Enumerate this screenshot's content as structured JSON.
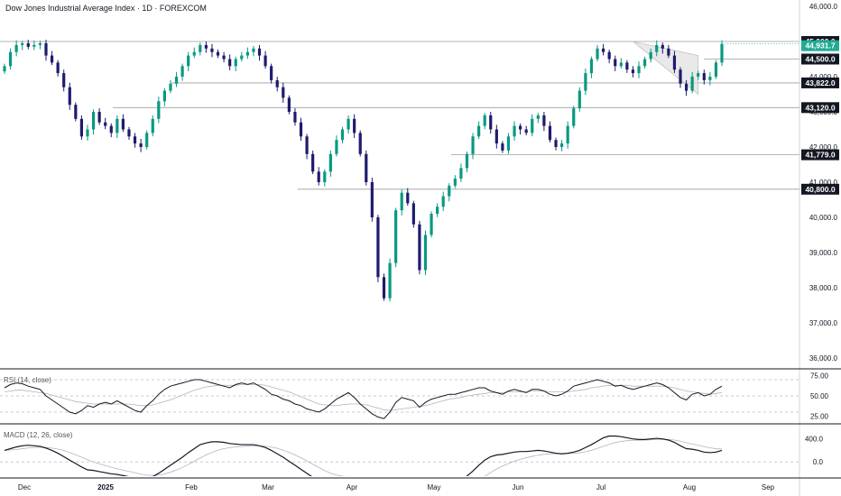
{
  "header": {
    "title": "Dow Jones Industrial Average Index · 1D · FOREXCOM"
  },
  "rsi_label": "RSI (14, close)",
  "macd_label": "MACD (12, 26, close)",
  "colors": {
    "up": "#089981",
    "down": "#1e1b6e",
    "level_line": "#9e9e9e",
    "last_price": "#22ab94"
  },
  "chart_data": [
    {
      "type": "candlestick",
      "title": "Dow Jones Industrial Average Index · 1D · FOREXCOM",
      "ylim": [
        36000,
        46000
      ],
      "y_ticks": [
        "46,000.0",
        "45,000.0",
        "44,000.0",
        "43,000.0",
        "42,000.0",
        "41,000.0",
        "40,000.0",
        "39,000.0",
        "38,000.0",
        "37,000.0",
        "36,000.0"
      ],
      "y_tick_values": [
        46000,
        45000,
        44000,
        43000,
        42000,
        41000,
        40000,
        39000,
        38000,
        37000,
        36000
      ],
      "x_ticks": [
        "Dec",
        "2025",
        "Feb",
        "Mar",
        "Apr",
        "May",
        "Jun",
        "Jul",
        "Aug",
        "Sep"
      ],
      "levels": [
        {
          "value": 45000,
          "label": "45,000.0"
        },
        {
          "value": 44500,
          "label": "44,500.0"
        },
        {
          "value": 43822,
          "label": "43,822.0"
        },
        {
          "value": 43120,
          "label": "43,120.0"
        },
        {
          "value": 41779,
          "label": "41,779.0"
        },
        {
          "value": 40800,
          "label": "40,800.0"
        }
      ],
      "last_price": {
        "value": 44931.7,
        "label": "44,931.7"
      },
      "closes": [
        44300,
        44700,
        44900,
        44950,
        44850,
        44900,
        44950,
        44600,
        44400,
        44100,
        43700,
        43200,
        42800,
        42300,
        42500,
        43000,
        42700,
        42600,
        42400,
        42800,
        42500,
        42300,
        42100,
        42000,
        42400,
        42800,
        43300,
        43600,
        43800,
        44000,
        44300,
        44600,
        44700,
        44900,
        44800,
        44700,
        44600,
        44500,
        44300,
        44500,
        44600,
        44700,
        44800,
        44600,
        44300,
        43900,
        43700,
        43400,
        43000,
        42700,
        42300,
        41800,
        41300,
        41000,
        41300,
        41800,
        42200,
        42500,
        42800,
        42400,
        41800,
        41000,
        40000,
        38300,
        37700,
        38700,
        40200,
        40700,
        40400,
        39800,
        38500,
        39500,
        40100,
        40300,
        40600,
        40900,
        41100,
        41400,
        41800,
        42300,
        42600,
        42900,
        42500,
        42100,
        41900,
        42300,
        42600,
        42500,
        42400,
        42800,
        42900,
        42600,
        42200,
        42000,
        42100,
        42600,
        43100,
        43600,
        44100,
        44500,
        44800,
        44700,
        44500,
        44300,
        44400,
        44200,
        44100,
        44300,
        44500,
        44700,
        44900,
        44800,
        44600,
        44200,
        43800,
        43600,
        44000,
        44100,
        43900,
        44000,
        44400,
        44931.7
      ]
    },
    {
      "type": "line",
      "title": "RSI (14, close)",
      "ylim": [
        20,
        80
      ],
      "y_ticks": [
        "75.00",
        "50.00",
        "25.00"
      ],
      "y_tick_values": [
        75,
        50,
        25
      ],
      "rsi": [
        60,
        64,
        66,
        65,
        62,
        60,
        58,
        50,
        45,
        40,
        35,
        30,
        28,
        32,
        38,
        36,
        40,
        42,
        40,
        44,
        40,
        36,
        32,
        30,
        38,
        44,
        52,
        58,
        62,
        64,
        66,
        68,
        70,
        70,
        68,
        66,
        64,
        62,
        60,
        64,
        66,
        64,
        66,
        62,
        58,
        52,
        50,
        46,
        44,
        40,
        38,
        34,
        32,
        30,
        34,
        40,
        46,
        50,
        54,
        48,
        40,
        34,
        28,
        24,
        22,
        30,
        42,
        48,
        46,
        44,
        36,
        42,
        46,
        48,
        50,
        52,
        52,
        54,
        56,
        58,
        60,
        60,
        56,
        54,
        52,
        56,
        58,
        56,
        54,
        58,
        58,
        56,
        52,
        50,
        52,
        56,
        62,
        64,
        66,
        68,
        70,
        68,
        66,
        62,
        63,
        60,
        58,
        60,
        62,
        64,
        66,
        64,
        60,
        54,
        48,
        45,
        52,
        54,
        50,
        52,
        58,
        62
      ],
      "rsi_ma": [
        55,
        56,
        57,
        57,
        56,
        55,
        54,
        53,
        51,
        49,
        47,
        45,
        43,
        42,
        41,
        40,
        40,
        40,
        40,
        40,
        40,
        40,
        39,
        38,
        38,
        39,
        41,
        43,
        45,
        48,
        51,
        54,
        57,
        59,
        61,
        62,
        63,
        63,
        63,
        63,
        64,
        64,
        64,
        64,
        63,
        61,
        59,
        57,
        55,
        52,
        49,
        46,
        43,
        40,
        39,
        38,
        38,
        39,
        40,
        40,
        40,
        39,
        37,
        35,
        33,
        32,
        33,
        34,
        35,
        36,
        37,
        38,
        40,
        42,
        44,
        46,
        47,
        48,
        50,
        51,
        52,
        53,
        54,
        54,
        54,
        55,
        55,
        55,
        55,
        56,
        56,
        56,
        55,
        55,
        55,
        55,
        56,
        57,
        58,
        60,
        61,
        62,
        63,
        63,
        63,
        63,
        62,
        62,
        62,
        62,
        62,
        62,
        61,
        60,
        58,
        56,
        55,
        54,
        53,
        52,
        53,
        54
      ]
    },
    {
      "type": "line",
      "title": "MACD (12, 26, close)",
      "y_ticks": [
        "400.0",
        "0.0"
      ],
      "y_tick_values": [
        400,
        0
      ],
      "macd": [
        200,
        230,
        260,
        280,
        290,
        280,
        270,
        240,
        200,
        150,
        90,
        30,
        -30,
        -90,
        -140,
        -150,
        -170,
        -190,
        -210,
        -220,
        -240,
        -260,
        -290,
        -310,
        -300,
        -260,
        -200,
        -130,
        -60,
        10,
        80,
        160,
        230,
        300,
        330,
        350,
        350,
        340,
        320,
        310,
        300,
        300,
        300,
        280,
        250,
        200,
        140,
        80,
        10,
        -60,
        -130,
        -200,
        -270,
        -330,
        -370,
        -380,
        -360,
        -330,
        -300,
        -310,
        -360,
        -430,
        -520,
        -640,
        -760,
        -800,
        -760,
        -700,
        -660,
        -640,
        -680,
        -660,
        -620,
        -580,
        -530,
        -470,
        -400,
        -330,
        -250,
        -160,
        -60,
        30,
        90,
        120,
        130,
        150,
        170,
        180,
        180,
        190,
        200,
        190,
        170,
        150,
        140,
        150,
        170,
        200,
        250,
        300,
        360,
        420,
        450,
        450,
        440,
        420,
        400,
        390,
        390,
        400,
        410,
        400,
        380,
        340,
        280,
        230,
        220,
        200,
        170,
        160,
        170,
        200
      ]
    }
  ]
}
